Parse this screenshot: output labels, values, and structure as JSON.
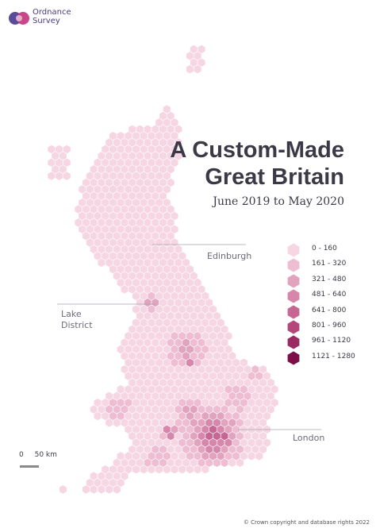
{
  "brand": {
    "name_line1": "Ordnance",
    "name_line2": "Survey"
  },
  "title": {
    "line1": "A Custom-Made",
    "line2": "Great Britain"
  },
  "subtitle": "June 2019 to May 2020",
  "places": {
    "edinburgh": "Edinburgh",
    "lake_district_line1": "Lake",
    "lake_district_line2": "District",
    "london": "London"
  },
  "legend": [
    {
      "label": "0 - 160",
      "color": "#f7d6e3"
    },
    {
      "label": "161 - 320",
      "color": "#eebdd1"
    },
    {
      "label": "321 - 480",
      "color": "#e2a3bf"
    },
    {
      "label": "481 - 640",
      "color": "#d687ab"
    },
    {
      "label": "641 - 800",
      "color": "#c76693"
    },
    {
      "label": "801 - 960",
      "color": "#b4487b"
    },
    {
      "label": "961 - 1120",
      "color": "#9a2a62"
    },
    {
      "label": "1121 - 1280",
      "color": "#7d0f48"
    }
  ],
  "scale_bar": {
    "zero": "0",
    "label": "50 km"
  },
  "credit": "© Crown copyright and database rights 2022",
  "colors": {
    "base_hex": "#f7d6e3",
    "leader_line": "#a7a3ae",
    "title_text": "#3b3946"
  }
}
